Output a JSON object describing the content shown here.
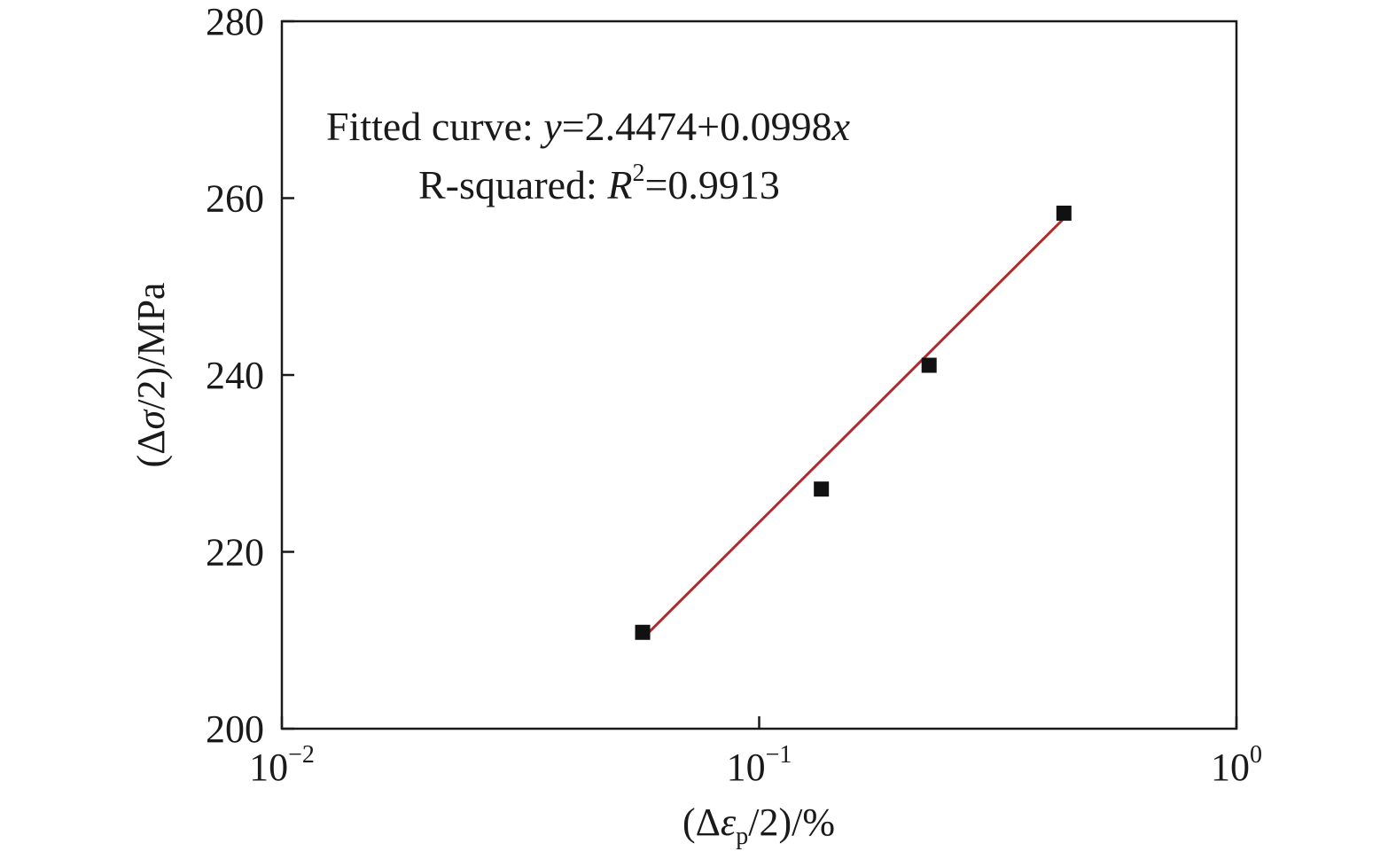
{
  "chart_data": {
    "type": "scatter",
    "title": "",
    "xlabel": {
      "pre": "(Δ",
      "var": "ε",
      "sub": "p",
      "post": "/2)/%"
    },
    "ylabel": {
      "pre": "(Δ",
      "var": "σ",
      "post": "/2)/MPa"
    },
    "x_scale": "log",
    "xlim": [
      0.01,
      1
    ],
    "ylim": [
      200,
      280
    ],
    "x_ticks": [
      {
        "value": 0.01,
        "base": "10",
        "exp": "−2"
      },
      {
        "value": 0.1,
        "base": "10",
        "exp": "−1"
      },
      {
        "value": 1,
        "base": "10",
        "exp": "0"
      }
    ],
    "y_ticks": [
      {
        "value": 200,
        "label": "200"
      },
      {
        "value": 220,
        "label": "220"
      },
      {
        "value": 240,
        "label": "240"
      },
      {
        "value": 260,
        "label": "260"
      },
      {
        "value": 280,
        "label": "280"
      }
    ],
    "grid": false,
    "series": [
      {
        "marker": "square",
        "color": "#111111",
        "points": [
          {
            "x": 0.057,
            "y": 210.9
          },
          {
            "x": 0.135,
            "y": 227.1
          },
          {
            "x": 0.227,
            "y": 241.1
          },
          {
            "x": 0.435,
            "y": 258.3
          }
        ]
      }
    ],
    "fit_line": {
      "color": "#b22a2a",
      "x": [
        0.057,
        0.435
      ],
      "y": [
        210.2,
        257.7
      ]
    },
    "annotations": {
      "fit": {
        "prefix": "Fitted curve: ",
        "y_var": "y",
        "eq": "=2.4474+0.0998",
        "x_var": "x"
      },
      "r2": {
        "prefix": "R-squared: ",
        "var": "R",
        "exp": "2",
        "value": "=0.9913"
      }
    }
  }
}
